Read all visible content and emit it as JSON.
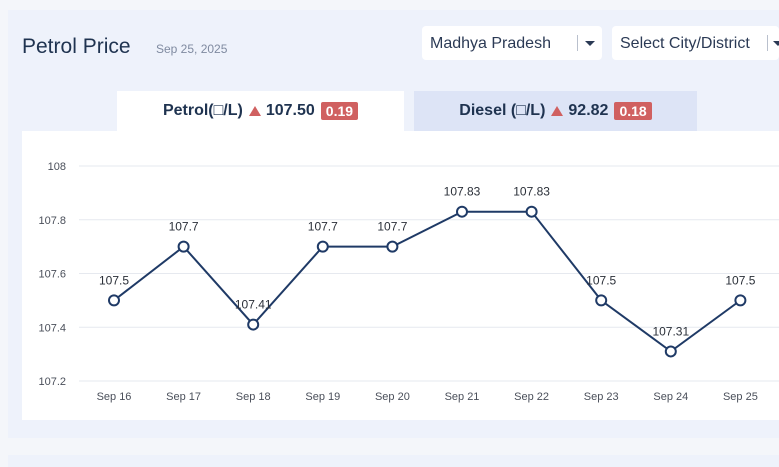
{
  "header": {
    "title": "Petrol Price",
    "date": "Sep 25, 2025"
  },
  "filters": {
    "state": "Madhya Pradesh",
    "city_placeholder": "Select City/District"
  },
  "tabs": [
    {
      "label": "Petrol(□/L)",
      "price": "107.50",
      "change": "0.19",
      "direction": "up",
      "active": true
    },
    {
      "label": "Diesel (□/L)",
      "price": "92.82",
      "change": "0.18",
      "direction": "up",
      "active": false
    }
  ],
  "colors": {
    "line": "#1f3a66",
    "up_badge": "#d06060",
    "active_tab": "#ffffff",
    "inactive_tab": "#dde4f6"
  },
  "chart_data": {
    "type": "line",
    "categories": [
      "Sep 16",
      "Sep 17",
      "Sep 18",
      "Sep 19",
      "Sep 20",
      "Sep 21",
      "Sep 22",
      "Sep 23",
      "Sep 24",
      "Sep 25"
    ],
    "values": [
      107.5,
      107.7,
      107.41,
      107.7,
      107.7,
      107.83,
      107.83,
      107.5,
      107.31,
      107.5
    ],
    "data_labels": [
      "107.5",
      "107.7",
      "107.41",
      "107.7",
      "107.7",
      "107.83",
      "107.83",
      "107.5",
      "107.31",
      "107.5"
    ],
    "yticks": [
      "107.2",
      "107.4",
      "107.6",
      "107.8",
      "108"
    ],
    "ylim": [
      107.2,
      108
    ],
    "grid": true
  }
}
